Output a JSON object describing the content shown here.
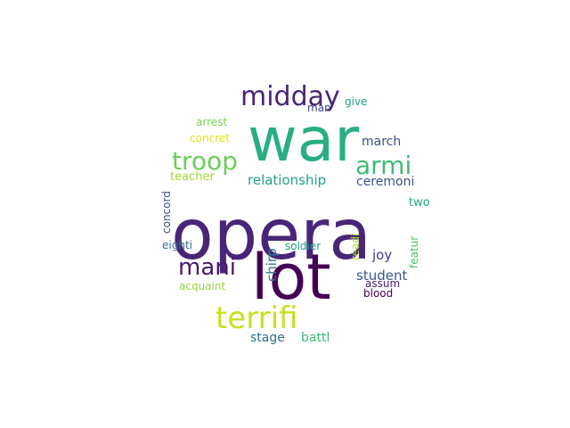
{
  "words": [
    {
      "text": "opera",
      "color": "#482677"
    },
    {
      "text": "war",
      "color": "#29af7f"
    },
    {
      "text": "lot",
      "color": "#440154"
    },
    {
      "text": "midday",
      "color": "#482677"
    },
    {
      "text": "troop",
      "color": "#6ccd5a"
    },
    {
      "text": "armi",
      "color": "#3fbc73"
    },
    {
      "text": "terrifi",
      "color": "#c8e020"
    },
    {
      "text": "mani",
      "color": "#48196b"
    },
    {
      "text": "relationship",
      "color": "#20a386"
    },
    {
      "text": "ceremoni",
      "color": "#3b528b"
    },
    {
      "text": "march",
      "color": "#3b528b"
    },
    {
      "text": "student",
      "color": "#38588c"
    },
    {
      "text": "stage",
      "color": "#2c728e"
    },
    {
      "text": "battl",
      "color": "#3cbb75"
    },
    {
      "text": "joy",
      "color": "#424086"
    },
    {
      "text": "chirp",
      "color": "#2a788e"
    },
    {
      "text": "soldier",
      "color": "#1f9e89"
    },
    {
      "text": "concord",
      "color": "#3e4c8a"
    },
    {
      "text": "teacher",
      "color": "#a2da37"
    },
    {
      "text": "concret",
      "color": "#dde318"
    },
    {
      "text": "arrest",
      "color": "#7ad151"
    },
    {
      "text": "eighti",
      "color": "#2f6c8e"
    },
    {
      "text": "acquaint",
      "color": "#95d840"
    },
    {
      "text": "two",
      "color": "#22a884"
    },
    {
      "text": "readi",
      "color": "#b5de2b"
    },
    {
      "text": "featur",
      "color": "#4ac16d"
    },
    {
      "text": "assum",
      "color": "#481b6d"
    },
    {
      "text": "blood",
      "color": "#440154"
    },
    {
      "text": "give",
      "color": "#1fa088"
    },
    {
      "text": "man",
      "color": "#3e4c8a"
    }
  ]
}
